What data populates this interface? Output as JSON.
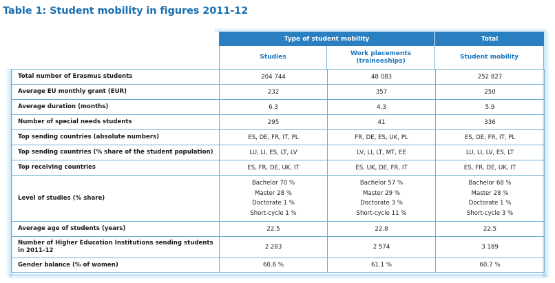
{
  "title": "Table 1: Student mobility in figures 2011-12",
  "header": {
    "group_label": "Type of student mobility",
    "total_label": "Total",
    "col_studies": "Studies",
    "col_work_line1": "Work placements",
    "col_work_line2": "(traineeships)",
    "col_total": "Student mobility"
  },
  "rows": [
    {
      "label": "Total number of Erasmus students",
      "studies": "204 744",
      "work": "48 083",
      "total": "252 827"
    },
    {
      "label": "Average EU monthly grant (EUR)",
      "studies": "232",
      "work": "357",
      "total": "250"
    },
    {
      "label": "Average duration (months)",
      "studies": "6.3",
      "work": "4.3",
      "total": "5.9"
    },
    {
      "label": "Number of special needs students",
      "studies": "295",
      "work": "41",
      "total": "336"
    },
    {
      "label": "Top sending countries (absolute numbers)",
      "studies": "ES, DE, FR, IT, PL",
      "work": "FR, DE, ES, UK, PL",
      "total": "ES, DE, FR, IT, PL"
    },
    {
      "label": "Top sending countries (% share of the student population)",
      "studies": "LU, LI, ES, LT, LV",
      "work": "LV, LI, LT, MT, EE",
      "total": "LU, LI, LV, ES, LT"
    },
    {
      "label": "Top receiving countries",
      "studies": "ES, FR, DE, UK, IT",
      "work": "ES, UK, DE, FR, IT",
      "total": "ES, FR, DE, UK, IT"
    }
  ],
  "level_row": {
    "label": "Level of studies (% share)",
    "studies": [
      "Bachelor 70 %",
      "Master 28 %",
      "Doctorate 1 %",
      "Short-cycle 1 %"
    ],
    "work": [
      "Bachelor 57 %",
      "Master 29 %",
      "Doctorate 3 %",
      "Short-cycle 11 %"
    ],
    "total": [
      "Bachelor 68 %",
      "Master 28 %",
      "Doctorate 1 %",
      "Short-cycle 3 %"
    ]
  },
  "rows_after": [
    {
      "label": "Average age of students (years)",
      "studies": "22.5",
      "work": "22.8",
      "total": "22.5"
    },
    {
      "label_line1": "Number of Higher Education Institutions sending students",
      "label_line2": "in 2011-12",
      "studies": "2 283",
      "work": "2 574",
      "total": "3 189"
    },
    {
      "label": "Gender balance (% of women)",
      "studies": "60.6 %",
      "work": "61.1 %",
      "total": "60.7 %"
    }
  ]
}
